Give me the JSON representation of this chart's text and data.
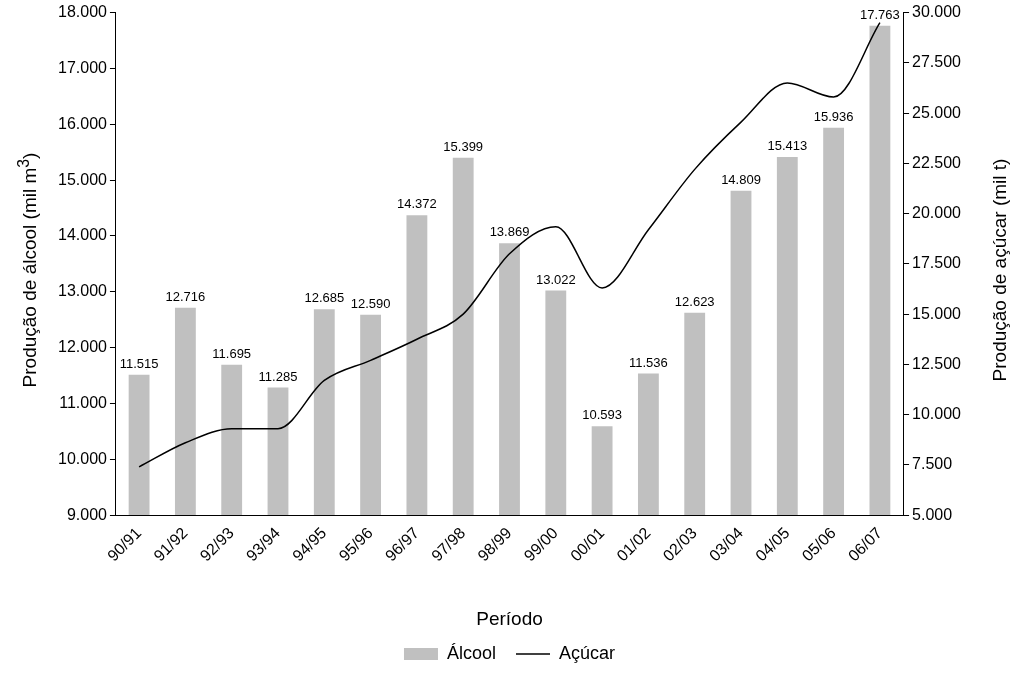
{
  "chart_data": {
    "type": "bar",
    "xlabel": "Período",
    "ylabel": "Produção de álcool (mil m$^{3}$)",
    "y2label": "Produção de açúcar (mil t)",
    "categories": [
      "90/91",
      "91/92",
      "92/93",
      "93/94",
      "94/95",
      "95/96",
      "96/97",
      "97/98",
      "98/99",
      "99/00",
      "00/01",
      "01/02",
      "02/03",
      "03/04",
      "04/05",
      "05/06",
      "06/07"
    ],
    "series": [
      {
        "name": "Álcool",
        "color": "#c0c0c0",
        "values": [
          11515,
          12716,
          11695,
          11285,
          12685,
          12590,
          14372,
          15399,
          13869,
          13022,
          10593,
          11536,
          12623,
          14809,
          15413,
          15936,
          17763
        ],
        "value_labels": [
          "11.515",
          "12.716",
          "11.695",
          "11.285",
          "12.685",
          "12.590",
          "14.372",
          "15.399",
          "13.869",
          "13.022",
          "10.593",
          "11.536",
          "12.623",
          "14.809",
          "15.413",
          "15.936",
          "17.763"
        ]
      },
      {
        "name": "Açúcar",
        "type": "line",
        "axis": "y2",
        "color": "#000000",
        "values": [
          7400,
          8600,
          9300,
          9300,
          11700,
          12700,
          13750,
          15000,
          18000,
          19350,
          16300,
          19200,
          22200,
          24550,
          26500,
          25800,
          29500
        ]
      }
    ],
    "ylim": [
      9000,
      18000
    ],
    "yticks": [
      {
        "value": 9000,
        "label": "9.000"
      },
      {
        "value": 10000,
        "label": "10.000"
      },
      {
        "value": 11000,
        "label": "11.000"
      },
      {
        "value": 12000,
        "label": "12.000"
      },
      {
        "value": 13000,
        "label": "13.000"
      },
      {
        "value": 14000,
        "label": "14.000"
      },
      {
        "value": 15000,
        "label": "15.000"
      },
      {
        "value": 16000,
        "label": "16.000"
      },
      {
        "value": 17000,
        "label": "17.000"
      },
      {
        "value": 18000,
        "label": "18.000"
      }
    ],
    "y2lim": [
      5000,
      30000
    ],
    "y2ticks": [
      {
        "value": 5000,
        "label": "5.000"
      },
      {
        "value": 7500,
        "label": "7.500"
      },
      {
        "value": 10000,
        "label": "10.000"
      },
      {
        "value": 12500,
        "label": "12.500"
      },
      {
        "value": 15000,
        "label": "15.000"
      },
      {
        "value": 17500,
        "label": "17.500"
      },
      {
        "value": 20000,
        "label": "20.000"
      },
      {
        "value": 22500,
        "label": "22.500"
      },
      {
        "value": 25000,
        "label": "25.000"
      },
      {
        "value": 27500,
        "label": "27.500"
      },
      {
        "value": 30000,
        "label": "30.000"
      }
    ],
    "grid": false,
    "legend": "bottom",
    "marker": "none",
    "line_style": "solid"
  }
}
